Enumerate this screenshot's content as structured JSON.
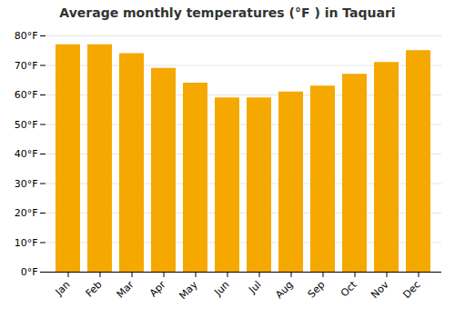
{
  "chart_data": {
    "type": "bar",
    "title": "Average monthly temperatures (°F ) in Taquari",
    "categories": [
      "Jan",
      "Feb",
      "Mar",
      "Apr",
      "May",
      "Jun",
      "Jul",
      "Aug",
      "Sep",
      "Oct",
      "Nov",
      "Dec"
    ],
    "values": [
      77,
      77,
      74,
      69,
      64,
      59,
      59,
      61,
      63,
      67,
      71,
      75
    ],
    "color": "#F5A800",
    "ylim": [
      0,
      80
    ],
    "yticks": [
      {
        "value": 0,
        "label": "0°F"
      },
      {
        "value": 10,
        "label": "10°F"
      },
      {
        "value": 20,
        "label": "20°F"
      },
      {
        "value": 30,
        "label": "30°F"
      },
      {
        "value": 40,
        "label": "40°F"
      },
      {
        "value": 50,
        "label": "50°F"
      },
      {
        "value": 60,
        "label": "60°F"
      },
      {
        "value": 70,
        "label": "70°F"
      },
      {
        "value": 80,
        "label": "80°F"
      }
    ],
    "grid": true
  }
}
